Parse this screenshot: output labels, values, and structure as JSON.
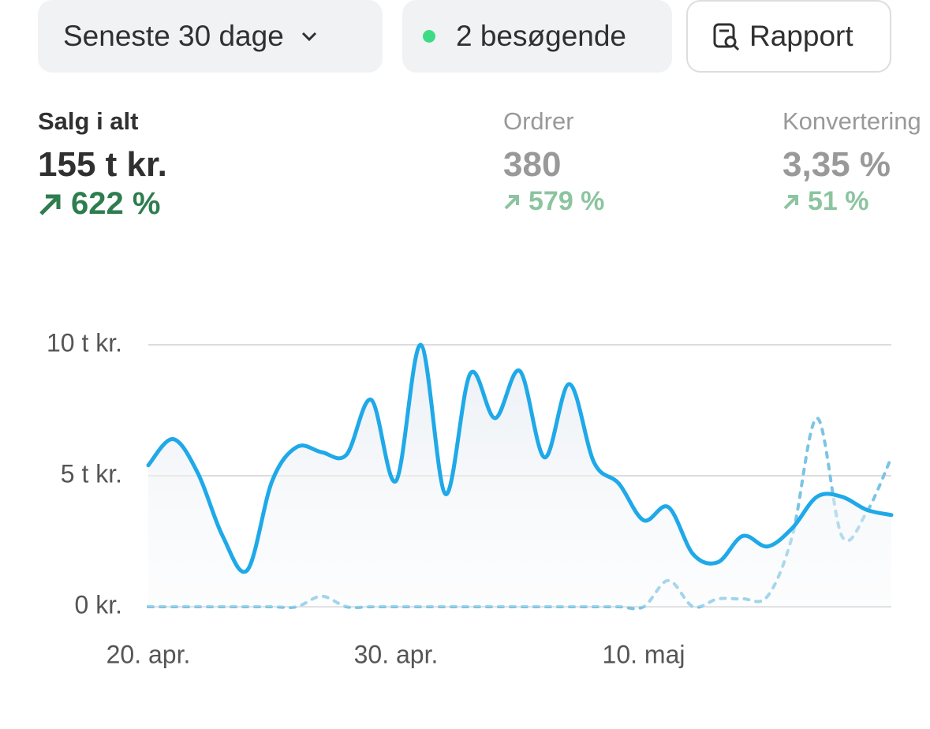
{
  "toolbar": {
    "period": "Seneste 30 dage",
    "visitors": "2 besøgende",
    "report": "Rapport"
  },
  "metrics": [
    {
      "title": "Salg i alt",
      "value": "155 t kr.",
      "change": "622 %"
    },
    {
      "title": "Ordrer",
      "value": "380",
      "change": "579 %"
    },
    {
      "title": "Konvertering",
      "value": "3,35 %",
      "change": "51 %"
    }
  ],
  "chart_data": {
    "type": "line",
    "categories": [
      "20. apr.",
      null,
      null,
      null,
      null,
      null,
      null,
      null,
      null,
      null,
      "30. apr.",
      null,
      null,
      null,
      null,
      null,
      null,
      null,
      null,
      null,
      "10. maj",
      null,
      null,
      null,
      null,
      null,
      null,
      null,
      null,
      null,
      null
    ],
    "series": [
      {
        "color": "#1fa9e8",
        "style": "solid",
        "values": [
          5.4,
          6.4,
          5.1,
          2.7,
          1.4,
          4.8,
          6.1,
          5.9,
          5.8,
          7.9,
          4.8,
          10,
          4.3,
          8.9,
          7.2,
          9.0,
          5.7,
          8.5,
          5.5,
          4.7,
          3.3,
          3.8,
          2.0,
          1.7,
          2.7,
          2.3,
          3.0,
          4.2,
          4.2,
          3.7,
          3.5
        ]
      },
      {
        "color": "#7cc4e4",
        "style": "dotted",
        "values": [
          0,
          0,
          0,
          0,
          0,
          0,
          0,
          0.4,
          0,
          0,
          0,
          0,
          0,
          0,
          0,
          0,
          0,
          0,
          0,
          0,
          0,
          1.0,
          0,
          0.3,
          0.3,
          0.4,
          2.7,
          7.2,
          2.7,
          3.6,
          5.7
        ]
      }
    ],
    "ylim": [
      0,
      10
    ],
    "yticks": [
      {
        "value": 0,
        "label": "0 kr."
      },
      {
        "value": 5,
        "label": "5 t kr."
      },
      {
        "value": 10,
        "label": "10 t kr."
      }
    ],
    "grid": true
  }
}
